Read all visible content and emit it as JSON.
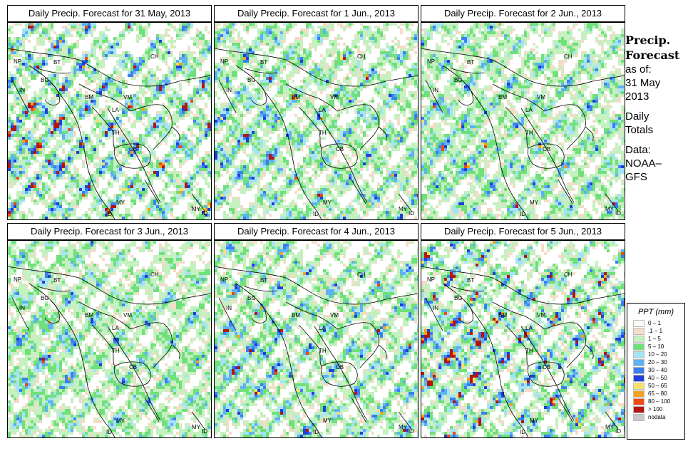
{
  "panels": [
    {
      "title": "Daily Precip. Forecast for  31 May, 2013",
      "intensity": 1.1,
      "seed": 11
    },
    {
      "title": "Daily Precip. Forecast for  1 Jun., 2013",
      "intensity": 0.9,
      "seed": 23
    },
    {
      "title": "Daily Precip. Forecast for  2 Jun., 2013",
      "intensity": 0.85,
      "seed": 37
    },
    {
      "title": "Daily Precip. Forecast for  3 Jun., 2013",
      "intensity": 0.8,
      "seed": 41
    },
    {
      "title": "Daily Precip. Forecast for  4 Jun., 2013",
      "intensity": 0.95,
      "seed": 53
    },
    {
      "title": "Daily Precip. Forecast for  5 Jun., 2013",
      "intensity": 1.15,
      "seed": 67
    }
  ],
  "country_labels": [
    "CH",
    "NP",
    "BT",
    "IN",
    "BG",
    "BM",
    "VM",
    "LA",
    "TH",
    "CB",
    "MY",
    "ID",
    "MY",
    "ID"
  ],
  "sidebar": {
    "title_line1": "Precip.",
    "title_line2": "Forecast",
    "asof_1": "as of:",
    "asof_2": "31 May",
    "asof_3": "2013",
    "totals_1": "Daily",
    "totals_2": "Totals",
    "data_1": "Data:",
    "data_2": "NOAA–",
    "data_3": "GFS"
  },
  "legend": {
    "title": "PPT (mm)",
    "items": [
      {
        "label": "0 – 1",
        "color": "#fdfcf6"
      },
      {
        "label": ".1 – 1",
        "color": "#f3dcc8"
      },
      {
        "label": "1 – 5",
        "color": "#c5f0c0"
      },
      {
        "label": "5 – 10",
        "color": "#6fe07a"
      },
      {
        "label": "10 – 20",
        "color": "#a6e3f5"
      },
      {
        "label": "20 – 30",
        "color": "#5fb1f0"
      },
      {
        "label": "30 – 40",
        "color": "#3b7ef0"
      },
      {
        "label": "40 – 50",
        "color": "#1f3fd6"
      },
      {
        "label": "50 – 65",
        "color": "#f7e06b"
      },
      {
        "label": "65 – 80",
        "color": "#f5a21e"
      },
      {
        "label": "80 – 100",
        "color": "#ee4a12"
      },
      {
        "label": "> 100",
        "color": "#b5150f"
      },
      {
        "label": "nodata",
        "color": "#c8c8c8"
      }
    ]
  }
}
